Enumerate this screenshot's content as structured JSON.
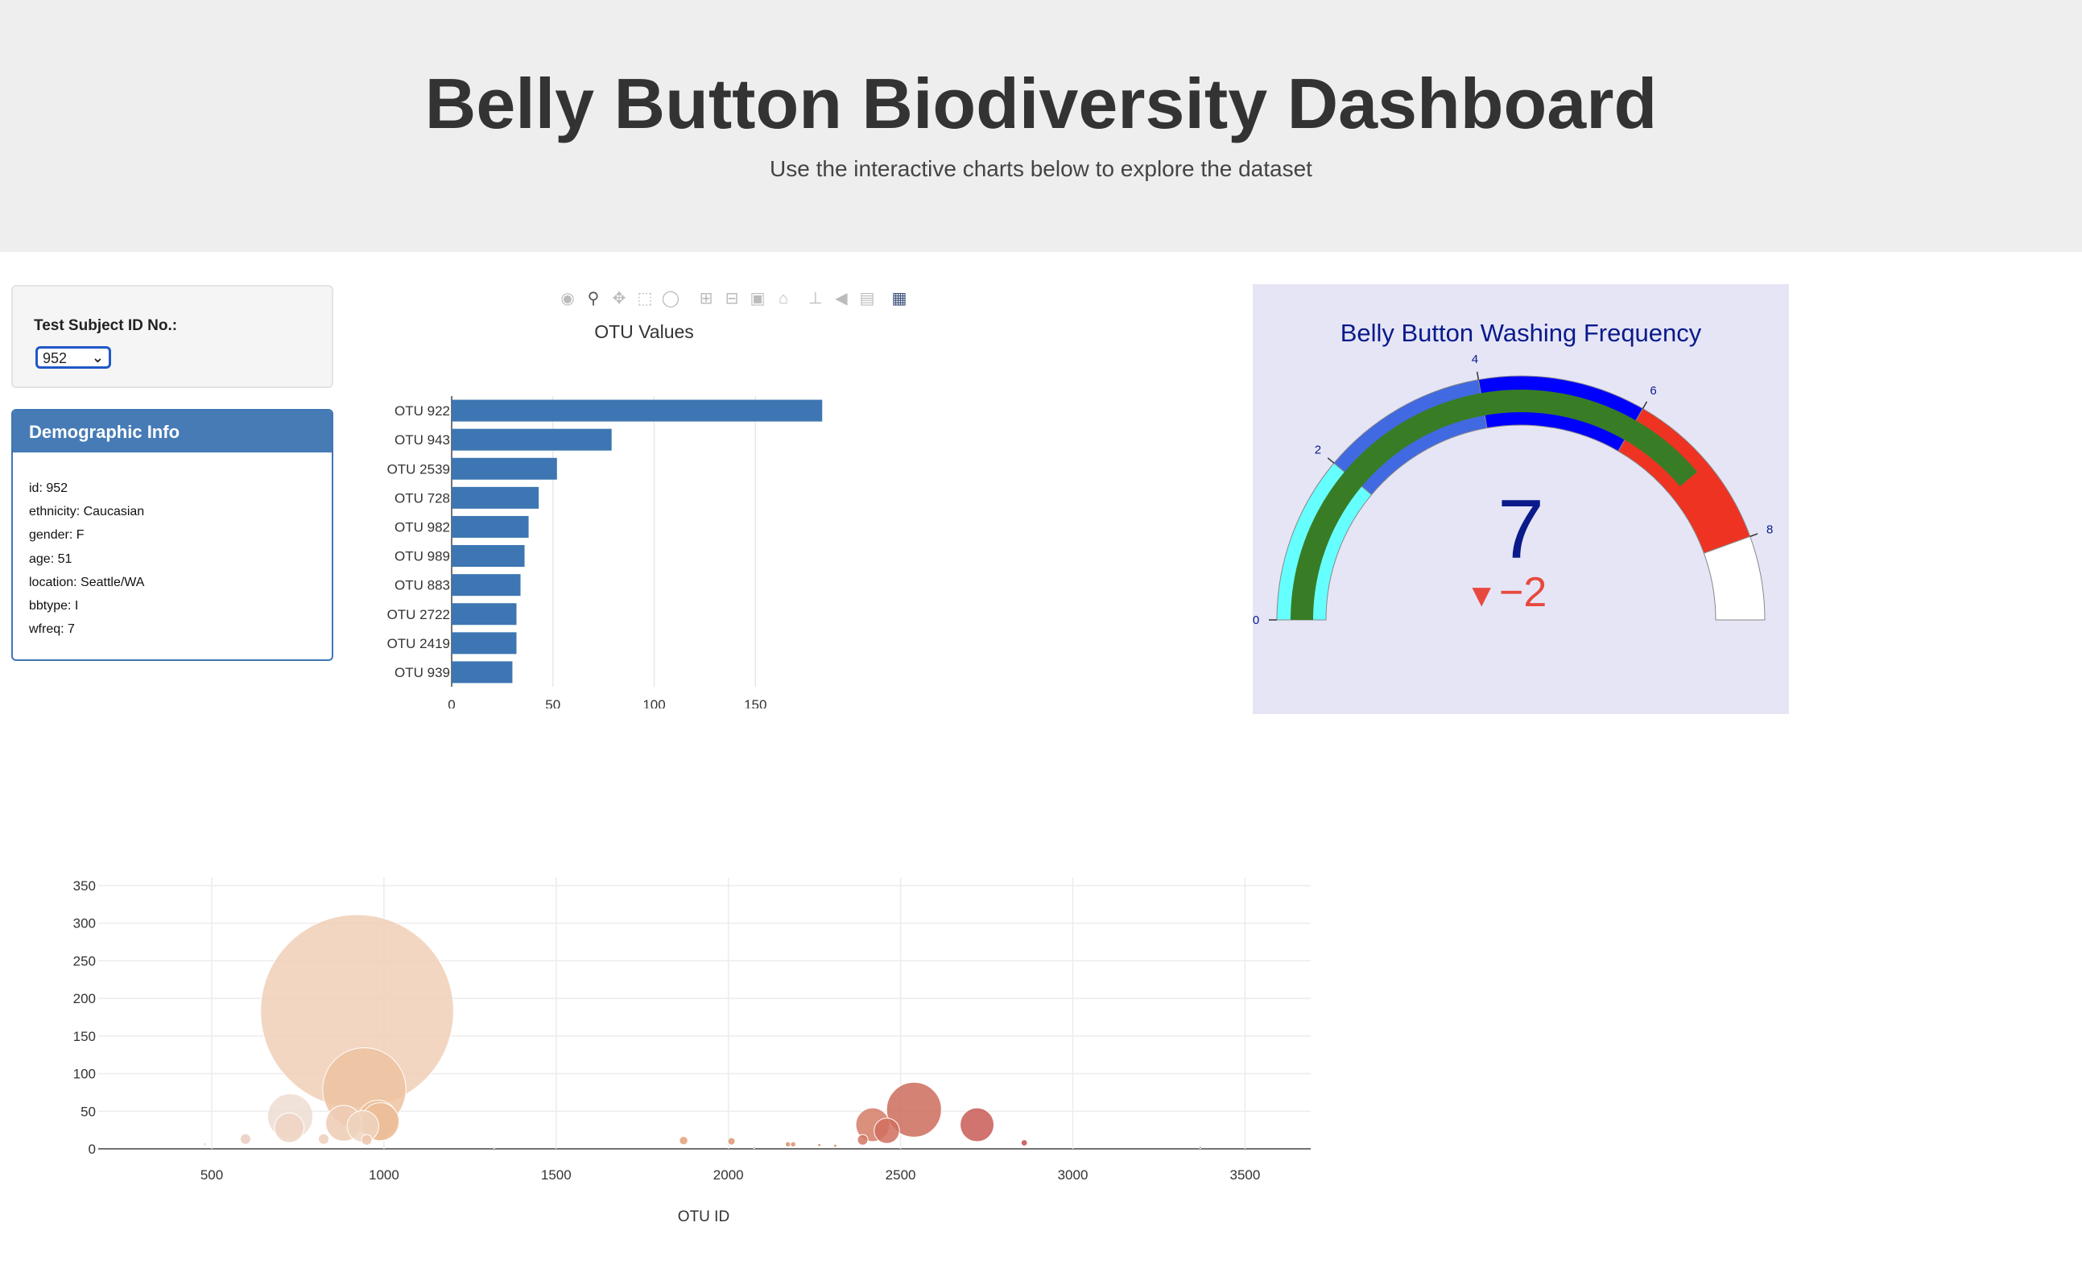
{
  "header": {
    "title": "Belly Button Biodiversity Dashboard",
    "subtitle": "Use the interactive charts below to explore the dataset"
  },
  "selector": {
    "label": "Test Subject ID No.:",
    "selected": "952"
  },
  "demographic": {
    "title": "Demographic Info",
    "rows": [
      "id: 952",
      "ethnicity: Caucasian",
      "gender: F",
      "age: 51",
      "location: Seattle/WA",
      "bbtype: I",
      "wfreq: 7"
    ]
  },
  "modebar_icons": [
    "camera-icon",
    "zoom-icon",
    "pan-icon",
    "box-select-icon",
    "lasso-icon",
    "zoom-in-icon",
    "zoom-out-icon",
    "autoscale-icon",
    "reset-axes-icon",
    "spike-lines-icon",
    "hover-closest-icon",
    "hover-compare-icon",
    "plotly-logo-icon"
  ],
  "colors": {
    "bar": "#3d76b2",
    "gauge_text": "#0a1a8a",
    "delta": "#e8493f",
    "gauge_bar": "#387d25"
  },
  "chart_data": [
    {
      "type": "bar",
      "title": "OTU Values",
      "orientation": "horizontal",
      "categories": [
        "OTU 922",
        "OTU 943",
        "OTU 2539",
        "OTU 728",
        "OTU 982",
        "OTU 989",
        "OTU 883",
        "OTU 2722",
        "OTU 2419",
        "OTU 939"
      ],
      "values": [
        183,
        79,
        52,
        43,
        38,
        36,
        34,
        32,
        32,
        30
      ],
      "xlim": [
        0,
        183
      ],
      "xticks": [
        "0",
        "50",
        "100",
        "150"
      ],
      "grid": true
    },
    {
      "type": "gauge",
      "title": "Belly Button Washing Frequency",
      "value": "7",
      "delta": "−2",
      "delta_marker": "▼",
      "range": [
        0,
        9
      ],
      "ticks": [
        "0",
        "2",
        "4",
        "6",
        "8"
      ],
      "steps": [
        {
          "range": [
            0,
            2
          ],
          "color": "#66ffff"
        },
        {
          "range": [
            2,
            4
          ],
          "color": "#4169e1"
        },
        {
          "range": [
            4,
            6
          ],
          "color": "#0000ff"
        },
        {
          "range": [
            6,
            8
          ],
          "color": "#ee3322"
        },
        {
          "range": [
            8,
            9
          ],
          "color": "#ffffff"
        }
      ]
    },
    {
      "type": "scatter",
      "subtype": "bubble",
      "xlabel": "OTU ID",
      "ylabel": "",
      "xlim": [
        250,
        3700
      ],
      "ylim": [
        0,
        350
      ],
      "xticks": [
        "500",
        "1000",
        "1500",
        "2000",
        "2500",
        "3000",
        "3500"
      ],
      "yticks": [
        "0",
        "50",
        "100",
        "150",
        "200",
        "250",
        "300",
        "350"
      ],
      "grid": true,
      "points": [
        {
          "x": 922,
          "y": 183,
          "size": 183,
          "color": "#f0cfb6"
        },
        {
          "x": 943,
          "y": 79,
          "size": 79,
          "color": "#edc2a0"
        },
        {
          "x": 728,
          "y": 43,
          "size": 43,
          "color": "#efddd2"
        },
        {
          "x": 989,
          "y": 36,
          "size": 36,
          "color": "#ebbd98"
        },
        {
          "x": 883,
          "y": 34,
          "size": 34,
          "color": "#edcbb3"
        },
        {
          "x": 939,
          "y": 30,
          "size": 30,
          "color": "#efd3bd"
        },
        {
          "x": 982,
          "y": 38,
          "size": 38,
          "color": "#ecc09b"
        },
        {
          "x": 725,
          "y": 28,
          "size": 28,
          "color": "#eed3c2"
        },
        {
          "x": 598,
          "y": 13,
          "size": 10,
          "color": "#e9cdc0"
        },
        {
          "x": 825,
          "y": 13,
          "size": 10,
          "color": "#efcfbb"
        },
        {
          "x": 950,
          "y": 12,
          "size": 10,
          "color": "#edc6ab"
        },
        {
          "x": 480,
          "y": 6,
          "size": 3,
          "color": "#e6ddd9"
        },
        {
          "x": 1870,
          "y": 11,
          "size": 8,
          "color": "#e3a17c"
        },
        {
          "x": 2009,
          "y": 10,
          "size": 7,
          "color": "#de9673"
        },
        {
          "x": 2539,
          "y": 52,
          "size": 52,
          "color": "#cd6c5b"
        },
        {
          "x": 2419,
          "y": 32,
          "size": 32,
          "color": "#d37d66"
        },
        {
          "x": 2722,
          "y": 32,
          "size": 32,
          "color": "#c95b55"
        },
        {
          "x": 2460,
          "y": 24,
          "size": 24,
          "color": "#d06e5e"
        },
        {
          "x": 2390,
          "y": 12,
          "size": 10,
          "color": "#d27764"
        },
        {
          "x": 2173,
          "y": 6,
          "size": 5,
          "color": "#dd9372"
        },
        {
          "x": 2188,
          "y": 6,
          "size": 5,
          "color": "#dd9170"
        },
        {
          "x": 2264,
          "y": 5,
          "size": 3,
          "color": "#d88a6c"
        },
        {
          "x": 2310,
          "y": 4,
          "size": 3,
          "color": "#d88a6c"
        },
        {
          "x": 2859,
          "y": 8,
          "size": 6,
          "color": "#c44f4e"
        },
        {
          "x": 2075,
          "y": 2,
          "size": 2,
          "color": "#dc9a7a"
        },
        {
          "x": 1320,
          "y": 2,
          "size": 2,
          "color": "#eadad0"
        },
        {
          "x": 3370,
          "y": 2,
          "size": 2,
          "color": "#b84345"
        }
      ]
    }
  ]
}
